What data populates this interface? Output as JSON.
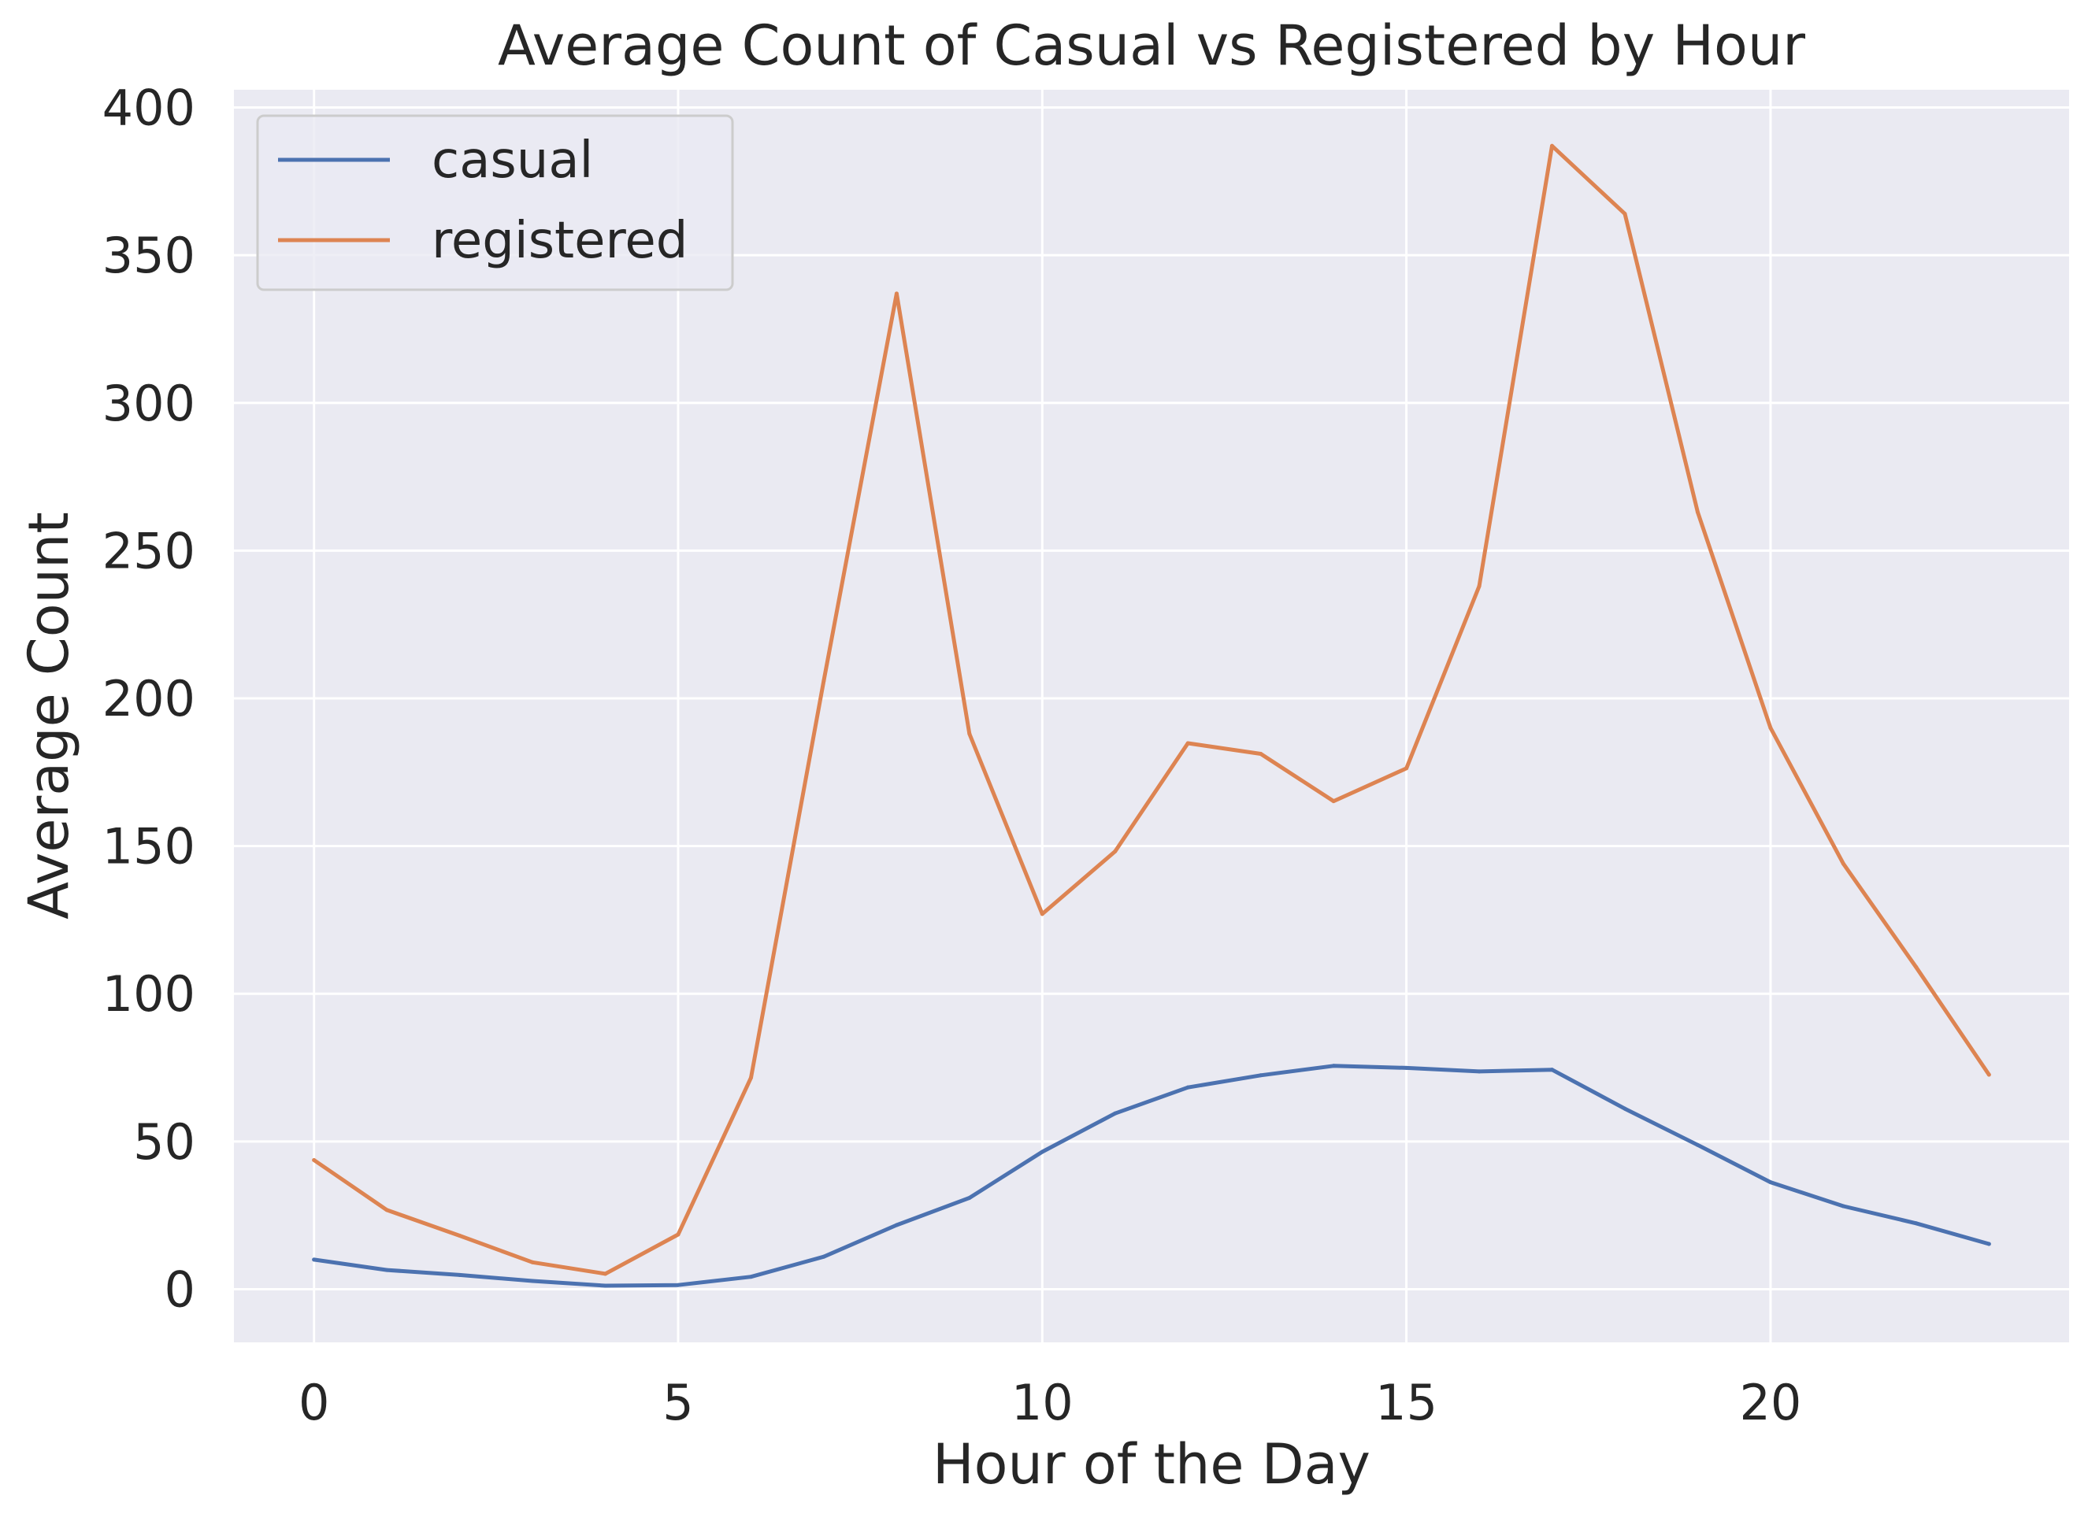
{
  "chart_data": {
    "type": "line",
    "title": "Average Count of Casual vs Registered by Hour",
    "xlabel": "Hour of the Day",
    "ylabel": "Average Count",
    "x": [
      0,
      1,
      2,
      3,
      4,
      5,
      6,
      7,
      8,
      9,
      10,
      11,
      12,
      13,
      14,
      15,
      16,
      17,
      18,
      19,
      20,
      21,
      22,
      23
    ],
    "xlim": [
      -1.1,
      24.1
    ],
    "ylim": [
      -18,
      406
    ],
    "xticks": [
      0,
      5,
      10,
      15,
      20
    ],
    "xtick_labels": [
      "0",
      "5",
      "10",
      "15",
      "20"
    ],
    "yticks": [
      0,
      50,
      100,
      150,
      200,
      250,
      300,
      350,
      400
    ],
    "ytick_labels": [
      "0",
      "50",
      "100",
      "150",
      "200",
      "250",
      "300",
      "350",
      "400"
    ],
    "grid": true,
    "legend_position": "top-left",
    "series": [
      {
        "name": "casual",
        "color": "#4c72b0",
        "values": [
          10,
          6.5,
          4.8,
          2.8,
          1.2,
          1.4,
          4.2,
          11,
          21.7,
          30.9,
          46.5,
          59.5,
          68.3,
          72.4,
          75.6,
          74.9,
          73.7,
          74.3,
          61.1,
          48.8,
          36.2,
          28.1,
          22.3,
          15.3
        ]
      },
      {
        "name": "registered",
        "color": "#dd8452",
        "values": [
          43.7,
          26.8,
          18.1,
          9.1,
          5.2,
          18.5,
          71.6,
          206,
          337,
          188,
          127,
          148.2,
          184.8,
          181.2,
          165.2,
          176.3,
          238,
          387,
          364,
          263,
          190,
          144,
          109,
          72.6
        ]
      }
    ]
  }
}
